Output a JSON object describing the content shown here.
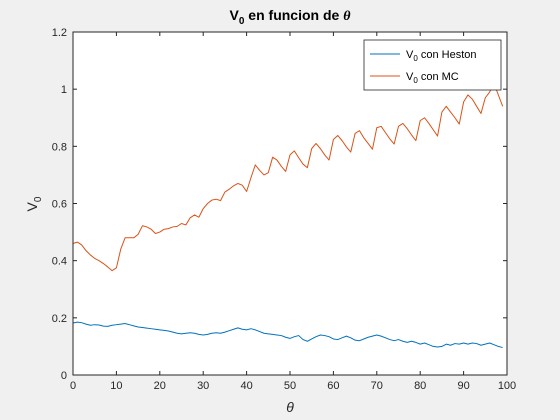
{
  "chart_data": {
    "type": "line",
    "title": {
      "main": "V",
      "sub": "0",
      "rest": " en funcion de ",
      "sym": "θ"
    },
    "xlabel": "θ",
    "ylabel": {
      "main": "V",
      "sub": "0"
    },
    "xlim": [
      0,
      100
    ],
    "ylim": [
      0,
      1.2
    ],
    "xticks": [
      0,
      10,
      20,
      30,
      40,
      50,
      60,
      70,
      80,
      90,
      100
    ],
    "yticks": [
      0,
      0.2,
      0.4,
      0.6,
      0.8,
      1,
      1.2
    ],
    "grid": false,
    "legend_position": "top-right",
    "colors": {
      "heston": "#0072BD",
      "mc": "#D95319"
    },
    "series": [
      {
        "name": {
          "main": "V",
          "sub": "0",
          "rest": " con Heston"
        },
        "color": "#0072BD",
        "x": [
          0,
          1,
          2,
          3,
          4,
          5,
          6,
          7,
          8,
          9,
          10,
          11,
          12,
          13,
          14,
          15,
          16,
          17,
          18,
          19,
          20,
          21,
          22,
          23,
          24,
          25,
          26,
          27,
          28,
          29,
          30,
          31,
          32,
          33,
          34,
          35,
          36,
          37,
          38,
          39,
          40,
          41,
          42,
          43,
          44,
          45,
          46,
          47,
          48,
          49,
          50,
          51,
          52,
          53,
          54,
          55,
          56,
          57,
          58,
          59,
          60,
          61,
          62,
          63,
          64,
          65,
          66,
          67,
          68,
          69,
          70,
          71,
          72,
          73,
          74,
          75,
          76,
          77,
          78,
          79,
          80,
          81,
          82,
          83,
          84,
          85,
          86,
          87,
          88,
          89,
          90,
          91,
          92,
          93,
          94,
          95,
          96,
          97,
          98,
          99
        ],
        "values": [
          0.182,
          0.185,
          0.183,
          0.178,
          0.174,
          0.176,
          0.175,
          0.171,
          0.17,
          0.174,
          0.176,
          0.178,
          0.18,
          0.176,
          0.172,
          0.168,
          0.166,
          0.164,
          0.162,
          0.16,
          0.158,
          0.156,
          0.154,
          0.15,
          0.146,
          0.144,
          0.146,
          0.148,
          0.146,
          0.142,
          0.14,
          0.142,
          0.146,
          0.148,
          0.146,
          0.15,
          0.155,
          0.16,
          0.165,
          0.16,
          0.158,
          0.162,
          0.158,
          0.152,
          0.146,
          0.144,
          0.142,
          0.14,
          0.138,
          0.132,
          0.128,
          0.134,
          0.138,
          0.124,
          0.118,
          0.126,
          0.134,
          0.14,
          0.138,
          0.134,
          0.126,
          0.124,
          0.13,
          0.136,
          0.13,
          0.122,
          0.12,
          0.126,
          0.132,
          0.136,
          0.14,
          0.136,
          0.13,
          0.124,
          0.12,
          0.124,
          0.118,
          0.114,
          0.118,
          0.114,
          0.108,
          0.112,
          0.106,
          0.1,
          0.098,
          0.1,
          0.108,
          0.104,
          0.11,
          0.108,
          0.112,
          0.108,
          0.112,
          0.11,
          0.104,
          0.108,
          0.112,
          0.106,
          0.1,
          0.096
        ]
      },
      {
        "name": {
          "main": "V",
          "sub": "0",
          "rest": " con MC"
        },
        "color": "#D95319",
        "x": [
          0,
          1,
          2,
          3,
          4,
          5,
          6,
          7,
          8,
          9,
          10,
          11,
          12,
          13,
          14,
          15,
          16,
          17,
          18,
          19,
          20,
          21,
          22,
          23,
          24,
          25,
          26,
          27,
          28,
          29,
          30,
          31,
          32,
          33,
          34,
          35,
          36,
          37,
          38,
          39,
          40,
          41,
          42,
          43,
          44,
          45,
          46,
          47,
          48,
          49,
          50,
          51,
          52,
          53,
          54,
          55,
          56,
          57,
          58,
          59,
          60,
          61,
          62,
          63,
          64,
          65,
          66,
          67,
          68,
          69,
          70,
          71,
          72,
          73,
          74,
          75,
          76,
          77,
          78,
          79,
          80,
          81,
          82,
          83,
          84,
          85,
          86,
          87,
          88,
          89,
          90,
          91,
          92,
          93,
          94,
          95,
          96,
          97,
          98,
          99
        ],
        "values": [
          0.46,
          0.465,
          0.455,
          0.435,
          0.42,
          0.408,
          0.4,
          0.39,
          0.378,
          0.365,
          0.375,
          0.44,
          0.48,
          0.48,
          0.48,
          0.492,
          0.522,
          0.518,
          0.51,
          0.495,
          0.5,
          0.51,
          0.512,
          0.518,
          0.52,
          0.53,
          0.525,
          0.55,
          0.56,
          0.552,
          0.582,
          0.6,
          0.612,
          0.615,
          0.61,
          0.64,
          0.65,
          0.662,
          0.67,
          0.664,
          0.642,
          0.69,
          0.735,
          0.716,
          0.7,
          0.708,
          0.762,
          0.752,
          0.73,
          0.712,
          0.77,
          0.784,
          0.76,
          0.738,
          0.725,
          0.792,
          0.81,
          0.792,
          0.77,
          0.752,
          0.824,
          0.838,
          0.82,
          0.798,
          0.78,
          0.845,
          0.855,
          0.83,
          0.81,
          0.79,
          0.865,
          0.87,
          0.848,
          0.826,
          0.808,
          0.87,
          0.88,
          0.862,
          0.84,
          0.82,
          0.89,
          0.9,
          0.88,
          0.858,
          0.836,
          0.92,
          0.94,
          0.92,
          0.9,
          0.878,
          0.955,
          0.98,
          0.965,
          0.94,
          0.915,
          0.97,
          0.99,
          1.02,
          0.98,
          0.94
        ]
      }
    ]
  }
}
